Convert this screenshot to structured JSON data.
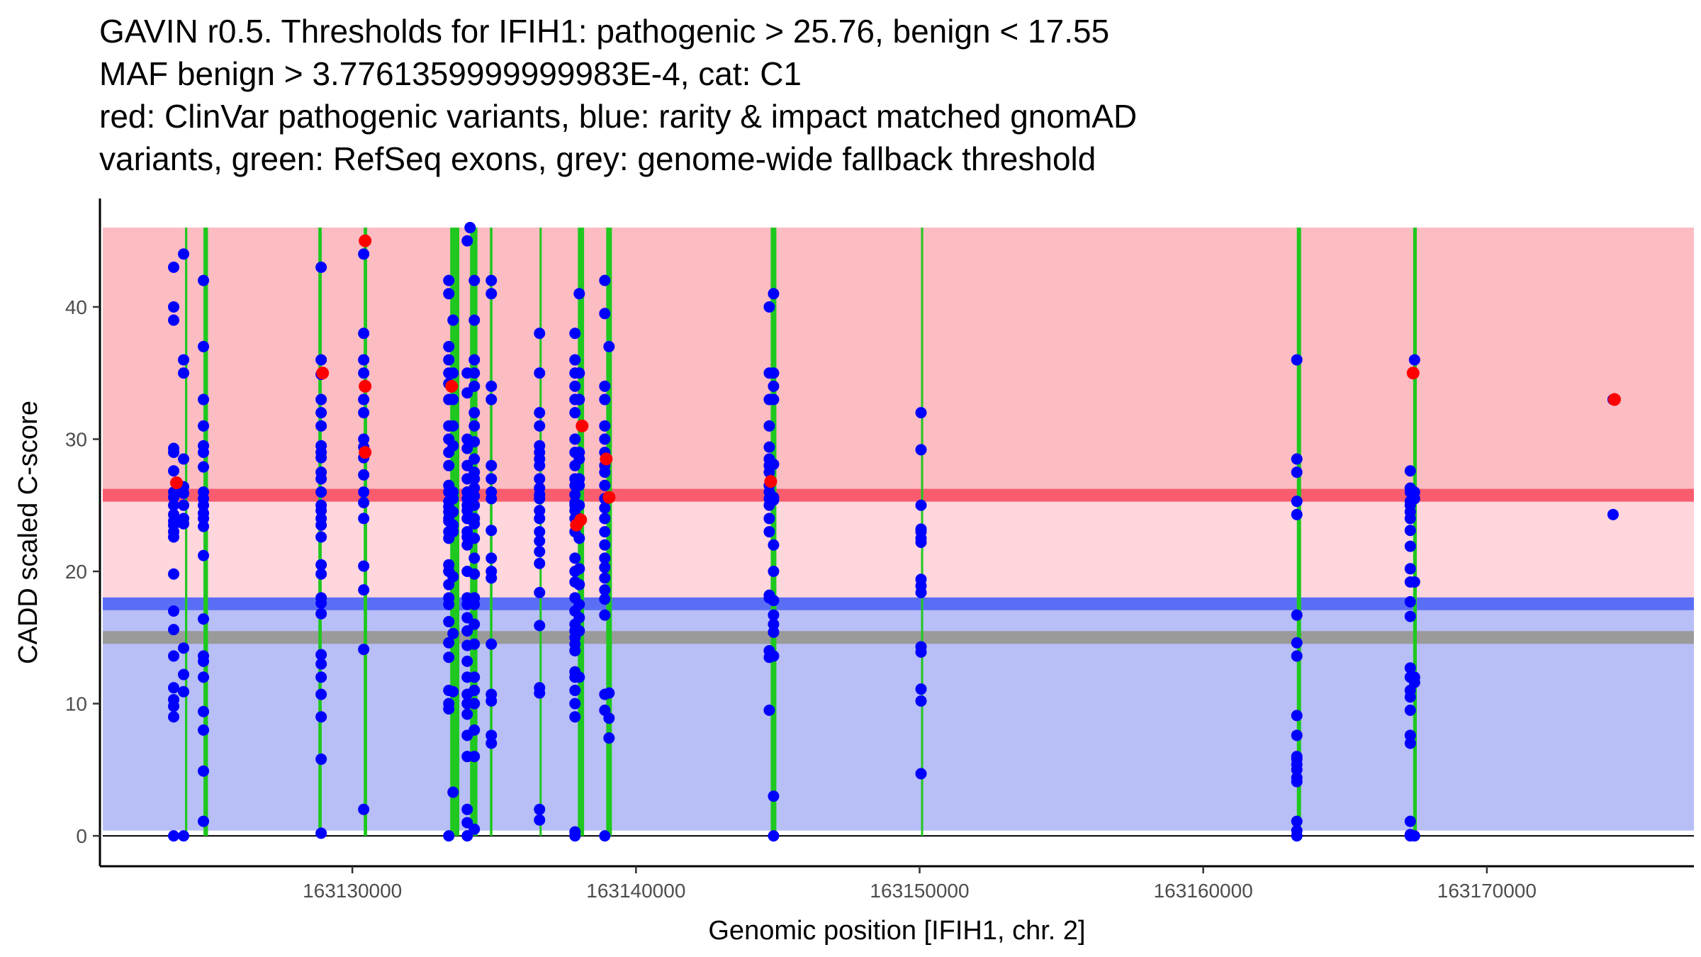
{
  "chart_data": {
    "type": "scatter",
    "title_lines": [
      "GAVIN r0.5. Thresholds for IFIH1: pathogenic > 25.76, benign < 17.55",
      "MAF benign > 3.7761359999999983E-4, cat: C1",
      "red: ClinVar pathogenic variants, blue: rarity & impact matched gnomAD",
      "variants, green: RefSeq exons, grey: genome-wide fallback threshold"
    ],
    "xlabel": "Genomic position [IFIH1, chr. 2]",
    "ylabel": "CADD scaled C-score",
    "xlim": [
      163121100,
      163177300
    ],
    "ylim": [
      -2.3,
      48.2
    ],
    "x_ticks": [
      163130000,
      163140000,
      163150000,
      163160000,
      163170000
    ],
    "x_tick_labels": [
      "163130000",
      "163140000",
      "163150000",
      "163160000",
      "163170000"
    ],
    "y_ticks": [
      0,
      10,
      20,
      30,
      40
    ],
    "y_tick_labels": [
      "0",
      "10",
      "20",
      "30",
      "40"
    ],
    "colors": {
      "pathogenic_region": "#fbbcc2",
      "uncertain_region": "#fed6dc",
      "benign_region": "#b8bef6",
      "pathogenic_threshold": "#f95c6e",
      "benign_threshold": "#5a6ef5",
      "fallback_threshold": "#9a9a9a",
      "exon": "#1ec81e",
      "gnomad": "#0000ff",
      "clinvar": "#ff0000"
    },
    "thresholds": {
      "pathogenic": 25.76,
      "benign": 17.55,
      "fallback": 15.0,
      "region_top": 46.0,
      "region_bottom": 0.4
    },
    "exons": [
      {
        "x": 163124100,
        "w": 80
      },
      {
        "x": 163124750,
        "w": 160
      },
      {
        "x": 163128800,
        "w": 120
      },
      {
        "x": 163130400,
        "w": 120
      },
      {
        "x": 163133450,
        "w": 320
      },
      {
        "x": 163134150,
        "w": 260
      },
      {
        "x": 163134850,
        "w": 90
      },
      {
        "x": 163136600,
        "w": 60
      },
      {
        "x": 163137950,
        "w": 220
      },
      {
        "x": 163138950,
        "w": 200
      },
      {
        "x": 163144750,
        "w": 200
      },
      {
        "x": 163150050,
        "w": 60
      },
      {
        "x": 163163300,
        "w": 150
      },
      {
        "x": 163167400,
        "w": 130
      }
    ],
    "series": [
      {
        "name": "gnomAD matched variants",
        "color": "#0000ff",
        "groups": [
          {
            "x": 163123700,
            "y": [
              43.0,
              40.0,
              39.0,
              29.3,
              29.0,
              27.6,
              26.0,
              25.6,
              25.0,
              24.3,
              23.8,
              23.5,
              23.0,
              22.6,
              19.8,
              17.0,
              15.6,
              13.6,
              11.2,
              10.3,
              9.8,
              9.0,
              0.0
            ]
          },
          {
            "x": 163124050,
            "y": [
              44.0,
              36.0,
              35.0,
              28.5,
              26.4,
              25.9,
              25.0,
              24.0,
              23.6,
              14.2,
              12.2,
              10.9,
              0.0
            ]
          },
          {
            "x": 163124750,
            "y": [
              42.0,
              37.0,
              33.0,
              31.0,
              29.5,
              29.0,
              27.9,
              26.0,
              25.5,
              25.0,
              24.4,
              24.0,
              23.4,
              21.2,
              16.4,
              13.6,
              13.2,
              12.0,
              9.4,
              8.0,
              4.9,
              1.1
            ]
          },
          {
            "x": 163128900,
            "y": [
              43.0,
              36.0,
              34.9,
              33.0,
              32.0,
              31.0,
              29.5,
              29.0,
              28.6,
              27.5,
              27.0,
              26.0,
              25.0,
              24.6,
              24.0,
              23.5,
              22.6,
              20.5,
              19.8,
              18.0,
              17.6,
              16.8,
              13.7,
              13.0,
              12.0,
              10.7,
              9.0,
              5.8,
              0.2
            ]
          },
          {
            "x": 163130400,
            "y": [
              44.0,
              38.0,
              36.0,
              35.0,
              33.0,
              32.0,
              30.0,
              29.4,
              28.6,
              27.3,
              26.0,
              25.2,
              24.0,
              20.4,
              18.6,
              14.1,
              2.0
            ]
          },
          {
            "x": 163133400,
            "y": [
              42.0,
              41.0,
              37.0,
              36.0,
              35.0,
              34.2,
              33.0,
              31.0,
              30.0,
              29.0,
              28.0,
              26.5,
              26.0,
              25.3,
              24.9,
              24.5,
              24.0,
              23.8,
              23.0,
              22.5,
              20.5,
              20.0,
              19.0,
              18.0,
              17.5,
              16.2,
              14.6,
              13.5,
              11.0,
              10.0,
              9.6,
              0.0
            ]
          },
          {
            "x": 163133550,
            "y": [
              39.0,
              35.0,
              33.0,
              31.0,
              29.5,
              26.0,
              25.5,
              24.5,
              23.5,
              23.0,
              19.6,
              15.3,
              10.9,
              3.3
            ]
          },
          {
            "x": 163134050,
            "y": [
              45.0,
              35.0,
              33.5,
              30.0,
              29.3,
              28.0,
              27.0,
              26.0,
              25.5,
              25.0,
              24.6,
              24.0,
              23.0,
              22.6,
              22.0,
              20.0,
              18.0,
              17.5,
              16.5,
              15.5,
              14.4,
              13.2,
              12.0,
              10.7,
              10.0,
              9.2,
              7.6,
              6.0,
              2.0,
              1.0,
              0.0
            ]
          },
          {
            "x": 163134300,
            "y": [
              42.0,
              39.0,
              36.0,
              35.0,
              34.0,
              32.0,
              31.0,
              29.8,
              28.5,
              27.5,
              27.0,
              26.3,
              25.7,
              25.0,
              24.0,
              23.6,
              22.5,
              21.0,
              19.8,
              18.0,
              17.5,
              16.0,
              14.5,
              12.0,
              11.0,
              10.0,
              8.0,
              6.0,
              0.5
            ]
          },
          {
            "x": 163134150,
            "y": [
              46.0
            ]
          },
          {
            "x": 163134900,
            "y": [
              42.0,
              41.0,
              34.0,
              33.0,
              28.0,
              27.0,
              26.0,
              25.5,
              23.1,
              21.0,
              20.0,
              19.5,
              14.5,
              10.7,
              10.2,
              7.6,
              7.0
            ]
          },
          {
            "x": 163136600,
            "y": [
              38.0,
              35.0,
              32.0,
              31.0,
              29.5,
              29.0,
              28.5,
              28.0,
              27.0,
              26.3,
              25.8,
              25.5,
              24.6,
              24.0,
              23.0,
              22.3,
              21.5,
              20.6,
              18.4,
              15.9,
              11.2,
              10.8,
              2.0,
              1.2
            ]
          },
          {
            "x": 163137850,
            "y": [
              38.0,
              36.0,
              35.0,
              34.0,
              33.0,
              32.0,
              30.0,
              29.0,
              28.0,
              27.0,
              26.5,
              25.8,
              25.2,
              25.0,
              24.6,
              24.0,
              23.0,
              21.0,
              20.0,
              19.2,
              18.0,
              17.0,
              16.0,
              15.5,
              15.0,
              14.5,
              14.0,
              12.4,
              12.0,
              11.0,
              10.0,
              9.0,
              0.3,
              0.0
            ]
          },
          {
            "x": 163138000,
            "y": [
              41.0,
              35.0,
              33.0,
              29.0,
              28.5,
              27.0,
              26.5,
              25.0,
              24.0,
              22.5,
              20.2,
              19.0,
              17.5,
              16.5,
              15.5,
              12.0
            ]
          },
          {
            "x": 163138900,
            "y": [
              42.0,
              39.5,
              34.0,
              33.0,
              31.0,
              30.0,
              29.0,
              28.0,
              27.5,
              26.5,
              25.5,
              24.8,
              24.0,
              23.0,
              22.0,
              21.0,
              20.3,
              19.5,
              18.6,
              17.9,
              16.7,
              10.7,
              9.5,
              0.0
            ]
          },
          {
            "x": 163139050,
            "y": [
              37.0,
              10.8,
              8.9,
              7.4
            ]
          },
          {
            "x": 163144700,
            "y": [
              40.0,
              35.0,
              33.0,
              31.0,
              29.4,
              28.5,
              28.0,
              27.5,
              26.5,
              26.0,
              25.5,
              25.0,
              24.0,
              23.0,
              18.2,
              18.0,
              14.0,
              13.5,
              9.5
            ]
          },
          {
            "x": 163144850,
            "y": [
              41.0,
              35.0,
              34.0,
              33.0,
              28.1,
              25.6,
              25.4,
              22.0,
              20.0,
              17.8,
              16.7,
              16.0,
              15.4,
              13.6,
              3.0,
              0.0
            ]
          },
          {
            "x": 163150050,
            "y": [
              32.0,
              29.2,
              25.0,
              23.2,
              23.0,
              22.5,
              22.2,
              19.4,
              18.9,
              18.4,
              14.3,
              13.9,
              11.1,
              10.2,
              4.7
            ]
          },
          {
            "x": 163163300,
            "y": [
              36.0,
              28.5,
              27.5,
              25.3,
              24.3,
              16.7,
              14.6,
              13.6,
              9.1,
              7.6,
              6.0,
              5.8,
              5.4,
              5.0,
              4.4,
              4.1,
              1.1,
              0.4,
              0.0
            ]
          },
          {
            "x": 163167300,
            "y": [
              27.6,
              26.3,
              26.0,
              25.3,
              25.0,
              24.5,
              24.0,
              23.1,
              21.9,
              20.2,
              19.2,
              17.7,
              16.6,
              12.7,
              12.0,
              11.0,
              10.5,
              9.5,
              7.6,
              7.0,
              1.1,
              0.1,
              0.0
            ]
          },
          {
            "x": 163167450,
            "y": [
              36.0,
              26.0,
              25.5,
              19.2,
              12.0,
              11.6,
              0.0
            ]
          },
          {
            "x": 163174450,
            "y": [
              33.0,
              24.3
            ]
          }
        ]
      },
      {
        "name": "ClinVar pathogenic variants",
        "color": "#ff0000",
        "points": [
          {
            "x": 163123800,
            "y": 26.7
          },
          {
            "x": 163128950,
            "y": 35.0
          },
          {
            "x": 163130450,
            "y": 45.0
          },
          {
            "x": 163130450,
            "y": 34.0
          },
          {
            "x": 163130450,
            "y": 29.0
          },
          {
            "x": 163133500,
            "y": 34.0
          },
          {
            "x": 163137900,
            "y": 23.5
          },
          {
            "x": 163138050,
            "y": 23.9
          },
          {
            "x": 163138100,
            "y": 31.0
          },
          {
            "x": 163138950,
            "y": 28.5
          },
          {
            "x": 163139050,
            "y": 25.6
          },
          {
            "x": 163144750,
            "y": 26.8
          },
          {
            "x": 163167400,
            "y": 35.0
          },
          {
            "x": 163174500,
            "y": 33.0
          }
        ]
      }
    ]
  }
}
